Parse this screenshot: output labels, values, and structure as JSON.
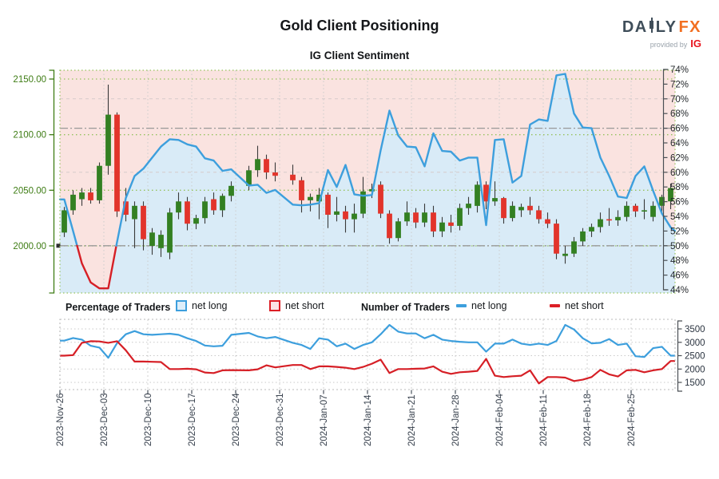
{
  "header": {
    "title": "Gold Client Positioning",
    "subtitle": "IG Client Sentiment",
    "logo": {
      "da": "DA",
      "ly": "LY",
      "fx": "FX",
      "provided": "provided by",
      "ig": "IG"
    }
  },
  "legend": {
    "pct_title": "Percentage of Traders",
    "num_title": "Number of Traders",
    "net_long": "net long",
    "net_short": "net short"
  },
  "colors": {
    "long_blue": "#3d9fdd",
    "short_red": "#d61f26",
    "candle_green": "#338022",
    "candle_red": "#e2342b",
    "fill_pink": "#fae3e0",
    "fill_blue": "#d9ebf7",
    "grid_green": "#96c25e",
    "axis_green": "#3e7c14",
    "logo_slate": "#3f4e5a",
    "logo_orange": "#f26f21",
    "ig_red": "#e8131d"
  },
  "chart_data": {
    "type": "candlestick+line",
    "title": "Gold Client Positioning",
    "subtitle": "IG Client Sentiment",
    "x_week_labels": [
      "2023-Nov-26",
      "2023-Dec-03",
      "2023-Dec-10",
      "2023-Dec-17",
      "2023-Dec-24",
      "2023-Dec-31",
      "2024-Jan-07",
      "2024-Jan-14",
      "2024-Jan-21",
      "2024-Jan-28",
      "2024-Feb-04",
      "2024-Feb-11",
      "2024-Feb-18",
      "2024-Feb-25"
    ],
    "price_axis": {
      "ticks": [
        "2150.00",
        "2100.00",
        "2050.00",
        "2000.00"
      ],
      "tick_values": [
        2150,
        2100,
        2050,
        2000
      ]
    },
    "percent_axis": {
      "max": 74,
      "min": 44,
      "step": 2,
      "unit": "%",
      "reference_lines": [
        66,
        50
      ],
      "minor_lines": [
        70,
        60
      ]
    },
    "count_axis": {
      "ticks": [
        "3500",
        "3000",
        "2500",
        "2000",
        "1500"
      ],
      "tick_values": [
        3500,
        3000,
        2500,
        2000,
        1500
      ]
    },
    "slots_per_week": 5,
    "weeks": 14,
    "candles": [
      [
        0,
        2012,
        2035,
        2008,
        2032
      ],
      [
        1,
        2032,
        2050,
        2028,
        2046
      ],
      [
        2,
        2042,
        2052,
        2036,
        2048
      ],
      [
        3,
        2048,
        2052,
        2038,
        2041
      ],
      [
        4,
        2041,
        2075,
        2038,
        2072
      ],
      [
        5,
        2072,
        2145,
        2064,
        2118
      ],
      [
        6,
        2118,
        2120,
        2026,
        2031
      ],
      [
        7,
        2040,
        2052,
        2022,
        2028
      ],
      [
        8,
        2024,
        2040,
        1998,
        2036
      ],
      [
        9,
        2036,
        2040,
        1996,
        2006
      ],
      [
        10,
        2000,
        2016,
        1992,
        2012
      ],
      [
        11,
        1998,
        2014,
        1990,
        2010
      ],
      [
        12,
        1994,
        2034,
        1988,
        2030
      ],
      [
        13,
        2030,
        2048,
        2024,
        2040
      ],
      [
        14,
        2040,
        2044,
        2014,
        2020
      ],
      [
        15,
        2020,
        2028,
        2015,
        2025
      ],
      [
        16,
        2025,
        2044,
        2020,
        2040
      ],
      [
        17,
        2042,
        2048,
        2028,
        2032
      ],
      [
        18,
        2032,
        2047,
        2026,
        2045
      ],
      [
        19,
        2045,
        2058,
        2040,
        2054
      ],
      [
        21,
        2054,
        2072,
        2050,
        2068
      ],
      [
        22,
        2068,
        2090,
        2062,
        2078
      ],
      [
        23,
        2078,
        2082,
        2060,
        2066
      ],
      [
        24,
        2066,
        2075,
        2058,
        2063
      ],
      [
        26,
        2064,
        2073,
        2055,
        2059
      ],
      [
        27,
        2059,
        2062,
        2030,
        2041
      ],
      [
        28,
        2041,
        2047,
        2031,
        2044
      ],
      [
        29,
        2040,
        2052,
        2024,
        2046
      ],
      [
        30,
        2046,
        2048,
        2016,
        2028
      ],
      [
        31,
        2028,
        2044,
        2022,
        2031
      ],
      [
        32,
        2031,
        2036,
        2012,
        2024
      ],
      [
        33,
        2024,
        2038,
        2012,
        2029
      ],
      [
        34,
        2029,
        2062,
        2025,
        2049
      ],
      [
        35,
        2049,
        2056,
        2043,
        2051
      ],
      [
        36,
        2055,
        2058,
        2025,
        2029
      ],
      [
        37,
        2029,
        2032,
        2002,
        2007
      ],
      [
        38,
        2007,
        2025,
        2004,
        2022
      ],
      [
        39,
        2022,
        2040,
        2018,
        2030
      ],
      [
        40,
        2030,
        2034,
        2016,
        2021
      ],
      [
        41,
        2021,
        2038,
        2017,
        2030
      ],
      [
        42,
        2030,
        2036,
        2008,
        2013
      ],
      [
        43,
        2013,
        2026,
        2008,
        2021
      ],
      [
        44,
        2021,
        2028,
        2012,
        2018
      ],
      [
        45,
        2018,
        2038,
        2014,
        2034
      ],
      [
        46,
        2034,
        2044,
        2028,
        2038
      ],
      [
        47,
        2036,
        2058,
        2030,
        2055
      ],
      [
        48,
        2055,
        2058,
        2033,
        2040
      ],
      [
        49,
        2040,
        2058,
        2036,
        2043
      ],
      [
        50,
        2043,
        2044,
        2020,
        2025
      ],
      [
        51,
        2025,
        2040,
        2022,
        2036
      ],
      [
        52,
        2032,
        2038,
        2026,
        2035
      ],
      [
        53,
        2036,
        2044,
        2028,
        2032
      ],
      [
        54,
        2032,
        2036,
        2020,
        2024
      ],
      [
        55,
        2024,
        2030,
        2016,
        2020
      ],
      [
        56,
        2020,
        2024,
        1988,
        1993
      ],
      [
        57,
        1991,
        2000,
        1984,
        1993
      ],
      [
        58,
        1993,
        2008,
        1990,
        2004
      ],
      [
        59,
        2004,
        2016,
        2000,
        2013
      ],
      [
        60,
        2013,
        2020,
        2008,
        2017
      ],
      [
        61,
        2017,
        2030,
        2012,
        2024
      ],
      [
        62,
        2024,
        2034,
        2018,
        2023
      ],
      [
        63,
        2023,
        2032,
        2018,
        2026
      ],
      [
        64,
        2026,
        2040,
        2022,
        2036
      ],
      [
        65,
        2036,
        2038,
        2026,
        2031
      ],
      [
        66,
        2031,
        2042,
        2024,
        2032
      ],
      [
        67,
        2026,
        2040,
        2022,
        2036
      ],
      [
        68,
        2036,
        2046,
        2030,
        2044
      ],
      [
        69,
        2040,
        2056,
        2033,
        2052
      ]
    ],
    "net_long_pct": [
      56.3,
      52.0,
      47.6,
      45.0,
      44.2,
      44.2,
      50.5,
      56.5,
      59.5,
      60.5,
      62.0,
      63.5,
      64.5,
      64.4,
      63.8,
      63.5,
      61.9,
      61.6,
      60.2,
      60.4,
      58.2,
      58.3,
      57.2,
      57.6,
      55.6,
      55.5,
      55.6,
      55.8,
      60.3,
      58.0,
      61.0,
      57.0,
      56.8,
      56.9,
      63.0,
      68.4,
      65.0,
      63.5,
      63.4,
      60.8,
      65.3,
      62.9,
      62.8,
      61.6,
      62.0,
      62.0,
      52.8,
      64.4,
      64.5,
      58.6,
      59.5,
      66.5,
      67.2,
      67.0,
      73.2,
      73.4,
      68.0,
      66.1,
      66.0,
      62.0,
      59.5,
      56.7,
      56.5,
      59.5,
      60.8,
      57.5,
      54.4,
      52.5
    ],
    "net_long_pct_edges": [
      56.3,
      52.0
    ],
    "traders_net_long": [
      3060,
      3160,
      3100,
      2870,
      2800,
      2420,
      2970,
      3300,
      3420,
      3300,
      3280,
      3300,
      3320,
      3280,
      3150,
      3050,
      2880,
      2850,
      2870,
      3280,
      3350,
      3220,
      3150,
      3200,
      2980,
      2900,
      2750,
      3150,
      3100,
      2850,
      2950,
      2750,
      2900,
      3000,
      3300,
      3650,
      3400,
      3330,
      3330,
      3150,
      3280,
      3100,
      3050,
      3020,
      3000,
      3000,
      2650,
      2950,
      2950,
      3100,
      2950,
      2900,
      2950,
      2900,
      3050,
      3650,
      3480,
      3150,
      2960,
      2980,
      3120,
      2900,
      2950,
      2480,
      2450,
      2780,
      2830,
      2500
    ],
    "traders_net_short": [
      2500,
      2520,
      2980,
      3040,
      3030,
      2980,
      3040,
      2700,
      2280,
      2280,
      2270,
      2260,
      2000,
      2000,
      2010,
      1990,
      1870,
      1850,
      1950,
      1960,
      1950,
      1990,
      2140,
      2060,
      2150,
      2150,
      2000,
      2100,
      2100,
      2080,
      2050,
      2000,
      2080,
      2200,
      2350,
      1850,
      2000,
      2000,
      2010,
      2020,
      2100,
      1900,
      1820,
      1880,
      1900,
      1930,
      2380,
      1750,
      1700,
      1730,
      1750,
      1950,
      1460,
      1700,
      1700,
      1680,
      1550,
      1600,
      1700,
      1970,
      1800,
      1720,
      1950,
      1970,
      1880,
      1950,
      2000,
      2300
    ]
  }
}
